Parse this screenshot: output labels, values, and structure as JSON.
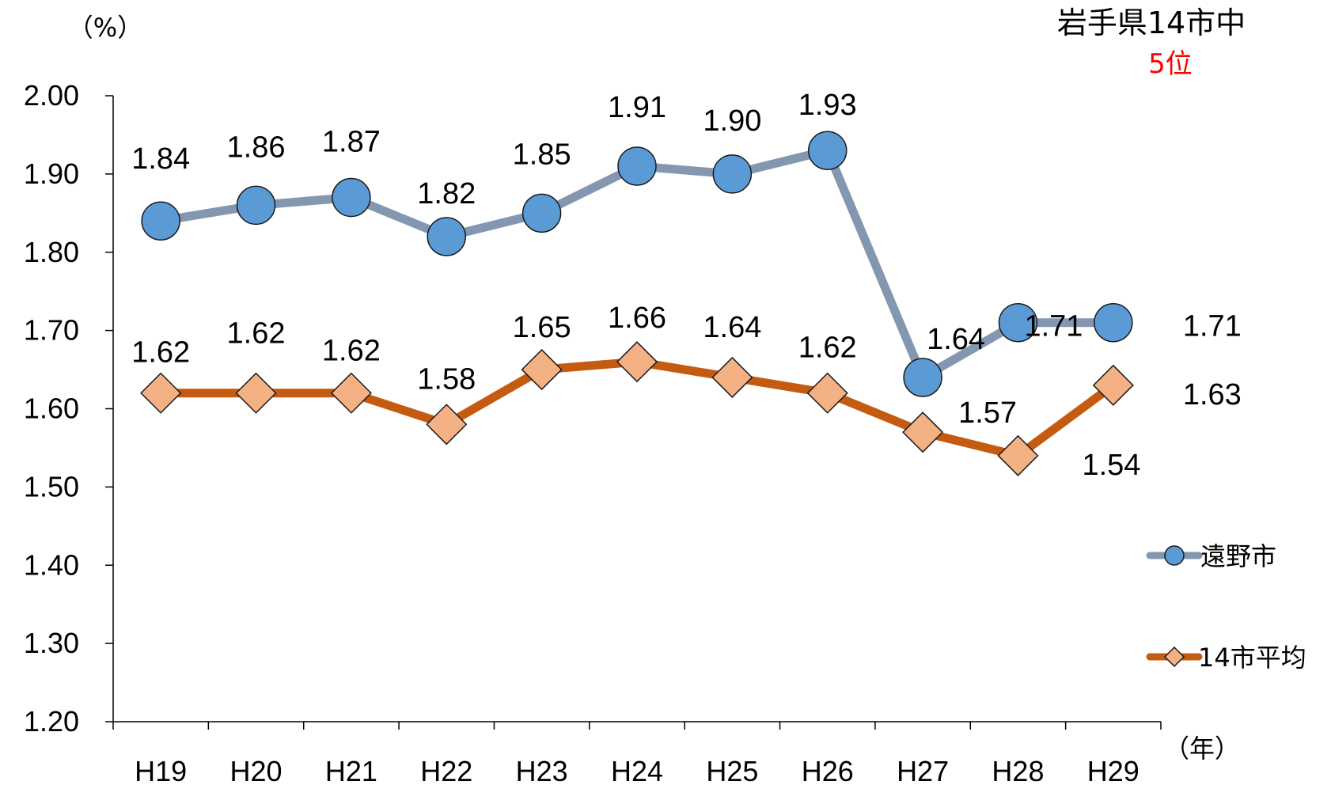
{
  "chart_data": {
    "type": "line",
    "categories": [
      "H19",
      "H20",
      "H21",
      "H22",
      "H23",
      "H24",
      "H25",
      "H26",
      "H27",
      "H28",
      "H29"
    ],
    "series": [
      {
        "name": "遠野市",
        "marker": "circle",
        "line_color": "#8497b0",
        "marker_color": "#5b9bd5",
        "values": [
          1.84,
          1.86,
          1.87,
          1.82,
          1.85,
          1.91,
          1.9,
          1.93,
          1.64,
          1.71,
          1.71
        ],
        "labels": [
          "1.84",
          "1.86",
          "1.87",
          "1.82",
          "1.85",
          "1.91",
          "1.90",
          "1.93",
          "1.64",
          "1.71",
          "1.71"
        ]
      },
      {
        "name": "14市平均",
        "marker": "diamond",
        "line_color": "#c55a11",
        "marker_color": "#f4b183",
        "values": [
          1.62,
          1.62,
          1.62,
          1.58,
          1.65,
          1.66,
          1.64,
          1.62,
          1.57,
          1.54,
          1.63
        ],
        "labels": [
          "1.62",
          "1.62",
          "1.62",
          "1.58",
          "1.65",
          "1.66",
          "1.64",
          "1.62",
          "1.57",
          "1.54",
          "1.63"
        ]
      }
    ],
    "yticks": [
      "1.20",
      "1.30",
      "1.40",
      "1.50",
      "1.60",
      "1.70",
      "1.80",
      "1.90",
      "2.00"
    ],
    "ylim": [
      1.2,
      2.0
    ],
    "y_unit_label": "（%）",
    "x_unit_label": "（年）",
    "annotation": {
      "line1": "岩手県14市中",
      "line2": "5位",
      "line2_color": "#ff0000"
    },
    "legend_position": "right",
    "grid": false
  }
}
